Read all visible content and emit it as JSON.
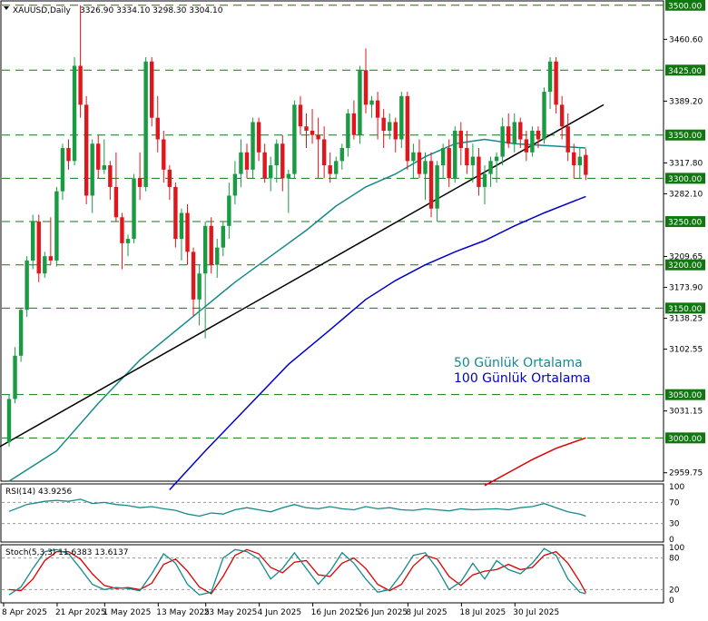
{
  "chart_data": {
    "type": "candlestick",
    "header": {
      "symbol": "XAUUSD,Daily",
      "ohlc": "3326.90 3334.10 3298.30 3304.10"
    },
    "colors": {
      "up": "#1a9a43",
      "down": "#e0161d",
      "ma50": "#158a8a",
      "ma100": "#0000cc",
      "ma200": "#dd0000",
      "trendline": "#000000",
      "level_line": "#117711",
      "level_tag_bg": "#117711",
      "rsi_line": "#158a8a",
      "stoch_main": "#158a8a",
      "stoch_signal": "#dd0000"
    },
    "price_axis": {
      "min": 2950,
      "max": 3505,
      "ticks": [
        "3460.60",
        "3389.20",
        "3317.80",
        "3282.10",
        "3209.65",
        "3173.90",
        "3138.25",
        "3102.55",
        "3031.15",
        "2959.75"
      ]
    },
    "levels": [
      {
        "value": 3500,
        "label": "3500.00"
      },
      {
        "value": 3425,
        "label": "3425.00"
      },
      {
        "value": 3350,
        "label": "3350.00"
      },
      {
        "value": 3300,
        "label": "3300.00"
      },
      {
        "value": 3250,
        "label": "3250.00"
      },
      {
        "value": 3200,
        "label": "3200.00"
      },
      {
        "value": 3150,
        "label": "3150.00"
      },
      {
        "value": 3050,
        "label": "3050.00"
      },
      {
        "value": 3000,
        "label": "3000.00"
      }
    ],
    "candles": [
      [
        2995,
        3050,
        2990,
        3045
      ],
      [
        3045,
        3105,
        3040,
        3095
      ],
      [
        3095,
        3150,
        3088,
        3148
      ],
      [
        3148,
        3210,
        3140,
        3205
      ],
      [
        3205,
        3258,
        3195,
        3250
      ],
      [
        3250,
        3258,
        3180,
        3190
      ],
      [
        3190,
        3215,
        3185,
        3210
      ],
      [
        3210,
        3255,
        3200,
        3205
      ],
      [
        3205,
        3290,
        3198,
        3285
      ],
      [
        3285,
        3340,
        3275,
        3335
      ],
      [
        3335,
        3345,
        3310,
        3320
      ],
      [
        3320,
        3440,
        3315,
        3430
      ],
      [
        3430,
        3500,
        3370,
        3385
      ],
      [
        3385,
        3395,
        3270,
        3280
      ],
      [
        3280,
        3345,
        3260,
        3340
      ],
      [
        3340,
        3350,
        3300,
        3310
      ],
      [
        3310,
        3345,
        3305,
        3315
      ],
      [
        3315,
        3320,
        3275,
        3290
      ],
      [
        3290,
        3330,
        3250,
        3255
      ],
      [
        3255,
        3260,
        3195,
        3225
      ],
      [
        3225,
        3235,
        3210,
        3230
      ],
      [
        3230,
        3305,
        3225,
        3300
      ],
      [
        3300,
        3330,
        3275,
        3290
      ],
      [
        3290,
        3440,
        3285,
        3435
      ],
      [
        3435,
        3440,
        3360,
        3370
      ],
      [
        3370,
        3395,
        3330,
        3345
      ],
      [
        3345,
        3355,
        3295,
        3310
      ],
      [
        3310,
        3315,
        3275,
        3290
      ],
      [
        3290,
        3295,
        3220,
        3230
      ],
      [
        3230,
        3265,
        3205,
        3260
      ],
      [
        3260,
        3270,
        3200,
        3215
      ],
      [
        3215,
        3220,
        3140,
        3160
      ],
      [
        3160,
        3200,
        3130,
        3190
      ],
      [
        3190,
        3250,
        3115,
        3245
      ],
      [
        3245,
        3255,
        3190,
        3200
      ],
      [
        3200,
        3230,
        3185,
        3220
      ],
      [
        3220,
        3250,
        3210,
        3245
      ],
      [
        3245,
        3295,
        3230,
        3280
      ],
      [
        3280,
        3320,
        3270,
        3305
      ],
      [
        3305,
        3345,
        3290,
        3330
      ],
      [
        3330,
        3340,
        3300,
        3310
      ],
      [
        3310,
        3370,
        3300,
        3365
      ],
      [
        3365,
        3370,
        3320,
        3330
      ],
      [
        3330,
        3340,
        3295,
        3300
      ],
      [
        3300,
        3325,
        3285,
        3315
      ],
      [
        3315,
        3345,
        3295,
        3340
      ],
      [
        3340,
        3350,
        3285,
        3300
      ],
      [
        3300,
        3310,
        3260,
        3305
      ],
      [
        3305,
        3390,
        3300,
        3385
      ],
      [
        3385,
        3395,
        3350,
        3360
      ],
      [
        3360,
        3375,
        3335,
        3355
      ],
      [
        3355,
        3380,
        3340,
        3350
      ],
      [
        3350,
        3370,
        3300,
        3345
      ],
      [
        3345,
        3360,
        3300,
        3315
      ],
      [
        3315,
        3330,
        3295,
        3305
      ],
      [
        3305,
        3325,
        3300,
        3320
      ],
      [
        3320,
        3340,
        3310,
        3335
      ],
      [
        3335,
        3380,
        3325,
        3375
      ],
      [
        3375,
        3390,
        3345,
        3350
      ],
      [
        3350,
        3430,
        3340,
        3425
      ],
      [
        3425,
        3450,
        3375,
        3385
      ],
      [
        3385,
        3395,
        3370,
        3390
      ],
      [
        3390,
        3400,
        3345,
        3370
      ],
      [
        3370,
        3380,
        3335,
        3355
      ],
      [
        3355,
        3375,
        3345,
        3365
      ],
      [
        3365,
        3370,
        3330,
        3345
      ],
      [
        3345,
        3400,
        3335,
        3395
      ],
      [
        3395,
        3400,
        3310,
        3320
      ],
      [
        3320,
        3340,
        3300,
        3330
      ],
      [
        3330,
        3345,
        3300,
        3305
      ],
      [
        3305,
        3330,
        3275,
        3320
      ],
      [
        3320,
        3330,
        3255,
        3265
      ],
      [
        3265,
        3320,
        3250,
        3315
      ],
      [
        3315,
        3340,
        3300,
        3335
      ],
      [
        3335,
        3345,
        3290,
        3300
      ],
      [
        3300,
        3360,
        3295,
        3355
      ],
      [
        3355,
        3365,
        3315,
        3335
      ],
      [
        3335,
        3355,
        3305,
        3315
      ],
      [
        3315,
        3340,
        3295,
        3325
      ],
      [
        3325,
        3335,
        3280,
        3290
      ],
      [
        3290,
        3315,
        3270,
        3305
      ],
      [
        3305,
        3325,
        3290,
        3320
      ],
      [
        3320,
        3330,
        3295,
        3325
      ],
      [
        3325,
        3370,
        3315,
        3360
      ],
      [
        3360,
        3375,
        3335,
        3340
      ],
      [
        3340,
        3375,
        3330,
        3365
      ],
      [
        3365,
        3370,
        3335,
        3345
      ],
      [
        3345,
        3355,
        3320,
        3330
      ],
      [
        3330,
        3360,
        3325,
        3355
      ],
      [
        3355,
        3360,
        3335,
        3345
      ],
      [
        3345,
        3405,
        3340,
        3400
      ],
      [
        3400,
        3440,
        3380,
        3435
      ],
      [
        3435,
        3440,
        3375,
        3385
      ],
      [
        3385,
        3395,
        3345,
        3360
      ],
      [
        3360,
        3375,
        3320,
        3330
      ],
      [
        3330,
        3340,
        3300,
        3315
      ],
      [
        3315,
        3335,
        3300,
        3325
      ],
      [
        3327,
        3334,
        3298,
        3304
      ]
    ],
    "ma50": [
      [
        0,
        2950
      ],
      [
        8,
        2985
      ],
      [
        15,
        3040
      ],
      [
        22,
        3090
      ],
      [
        30,
        3135
      ],
      [
        38,
        3180
      ],
      [
        44,
        3210
      ],
      [
        50,
        3240
      ],
      [
        55,
        3268
      ],
      [
        60,
        3290
      ],
      [
        65,
        3305
      ],
      [
        70,
        3325
      ],
      [
        75,
        3340
      ],
      [
        80,
        3345
      ],
      [
        85,
        3340
      ],
      [
        90,
        3338
      ],
      [
        97,
        3335
      ]
    ],
    "ma100": [
      [
        27,
        2940
      ],
      [
        33,
        2985
      ],
      [
        40,
        3035
      ],
      [
        47,
        3085
      ],
      [
        54,
        3125
      ],
      [
        60,
        3160
      ],
      [
        65,
        3182
      ],
      [
        70,
        3200
      ],
      [
        75,
        3215
      ],
      [
        80,
        3228
      ],
      [
        85,
        3245
      ],
      [
        90,
        3260
      ],
      [
        97,
        3279
      ]
    ],
    "ma200": [
      [
        80,
        2945
      ],
      [
        84,
        2960
      ],
      [
        88,
        2975
      ],
      [
        92,
        2988
      ],
      [
        97,
        3000
      ]
    ],
    "trendline": [
      [
        0,
        2990
      ],
      [
        100,
        3385
      ]
    ],
    "legend": [
      {
        "label": "50 Günlük Ortalama",
        "color_key": "ma50"
      },
      {
        "label": "100 Günlük Ortalama",
        "color_key": "ma100"
      }
    ],
    "rsi": {
      "header": "RSI(14) 43.9256",
      "levels": [
        70,
        30
      ],
      "axis_labels": [
        "100",
        "70",
        "30",
        "0"
      ],
      "values": [
        [
          0,
          53
        ],
        [
          3,
          66
        ],
        [
          6,
          72
        ],
        [
          8,
          74
        ],
        [
          10,
          72
        ],
        [
          12,
          76
        ],
        [
          14,
          68
        ],
        [
          16,
          70
        ],
        [
          18,
          66
        ],
        [
          20,
          64
        ],
        [
          22,
          60
        ],
        [
          24,
          62
        ],
        [
          26,
          58
        ],
        [
          28,
          55
        ],
        [
          30,
          48
        ],
        [
          32,
          44
        ],
        [
          34,
          50
        ],
        [
          36,
          48
        ],
        [
          38,
          56
        ],
        [
          40,
          60
        ],
        [
          42,
          56
        ],
        [
          44,
          52
        ],
        [
          46,
          60
        ],
        [
          48,
          66
        ],
        [
          50,
          60
        ],
        [
          52,
          58
        ],
        [
          54,
          62
        ],
        [
          56,
          58
        ],
        [
          58,
          56
        ],
        [
          60,
          62
        ],
        [
          62,
          58
        ],
        [
          64,
          60
        ],
        [
          66,
          56
        ],
        [
          68,
          55
        ],
        [
          70,
          58
        ],
        [
          72,
          56
        ],
        [
          74,
          54
        ],
        [
          76,
          58
        ],
        [
          78,
          56
        ],
        [
          80,
          57
        ],
        [
          82,
          58
        ],
        [
          84,
          56
        ],
        [
          86,
          60
        ],
        [
          88,
          62
        ],
        [
          90,
          68
        ],
        [
          92,
          60
        ],
        [
          94,
          52
        ],
        [
          96,
          48
        ],
        [
          97,
          44
        ]
      ]
    },
    "stoch": {
      "header": "Stoch(5,3,3) 11.6383 13.6137",
      "levels": [
        80,
        20
      ],
      "axis_labels": [
        "100",
        "80",
        "20",
        "0"
      ],
      "main": [
        [
          0,
          10
        ],
        [
          2,
          25
        ],
        [
          4,
          60
        ],
        [
          6,
          92
        ],
        [
          8,
          96
        ],
        [
          10,
          88
        ],
        [
          12,
          60
        ],
        [
          14,
          30
        ],
        [
          16,
          20
        ],
        [
          18,
          24
        ],
        [
          20,
          22
        ],
        [
          22,
          18
        ],
        [
          24,
          50
        ],
        [
          26,
          88
        ],
        [
          28,
          70
        ],
        [
          30,
          30
        ],
        [
          32,
          10
        ],
        [
          34,
          15
        ],
        [
          36,
          80
        ],
        [
          38,
          96
        ],
        [
          40,
          92
        ],
        [
          42,
          78
        ],
        [
          44,
          40
        ],
        [
          46,
          60
        ],
        [
          48,
          90
        ],
        [
          50,
          60
        ],
        [
          52,
          30
        ],
        [
          54,
          55
        ],
        [
          56,
          90
        ],
        [
          58,
          70
        ],
        [
          60,
          40
        ],
        [
          62,
          15
        ],
        [
          64,
          20
        ],
        [
          66,
          50
        ],
        [
          68,
          85
        ],
        [
          70,
          90
        ],
        [
          72,
          60
        ],
        [
          74,
          20
        ],
        [
          76,
          35
        ],
        [
          78,
          70
        ],
        [
          80,
          40
        ],
        [
          82,
          75
        ],
        [
          84,
          58
        ],
        [
          86,
          50
        ],
        [
          88,
          70
        ],
        [
          90,
          98
        ],
        [
          92,
          85
        ],
        [
          94,
          40
        ],
        [
          96,
          15
        ],
        [
          97,
          12
        ]
      ],
      "signal": [
        [
          0,
          20
        ],
        [
          2,
          18
        ],
        [
          4,
          40
        ],
        [
          6,
          75
        ],
        [
          8,
          92
        ],
        [
          10,
          92
        ],
        [
          12,
          78
        ],
        [
          14,
          50
        ],
        [
          16,
          28
        ],
        [
          18,
          22
        ],
        [
          20,
          24
        ],
        [
          22,
          20
        ],
        [
          24,
          32
        ],
        [
          26,
          68
        ],
        [
          28,
          78
        ],
        [
          30,
          55
        ],
        [
          32,
          25
        ],
        [
          34,
          12
        ],
        [
          36,
          45
        ],
        [
          38,
          85
        ],
        [
          40,
          96
        ],
        [
          42,
          88
        ],
        [
          44,
          62
        ],
        [
          46,
          52
        ],
        [
          48,
          72
        ],
        [
          50,
          75
        ],
        [
          52,
          48
        ],
        [
          54,
          45
        ],
        [
          56,
          70
        ],
        [
          58,
          80
        ],
        [
          60,
          60
        ],
        [
          62,
          30
        ],
        [
          64,
          18
        ],
        [
          66,
          30
        ],
        [
          68,
          65
        ],
        [
          70,
          85
        ],
        [
          72,
          78
        ],
        [
          74,
          45
        ],
        [
          76,
          28
        ],
        [
          78,
          48
        ],
        [
          80,
          55
        ],
        [
          82,
          58
        ],
        [
          84,
          68
        ],
        [
          86,
          58
        ],
        [
          88,
          62
        ],
        [
          90,
          85
        ],
        [
          92,
          92
        ],
        [
          94,
          70
        ],
        [
          96,
          35
        ],
        [
          97,
          14
        ]
      ]
    },
    "date_labels": [
      {
        "i": 0,
        "label": "8 Apr 2025"
      },
      {
        "i": 9,
        "label": "21 Apr 2025"
      },
      {
        "i": 17,
        "label": "1 May 2025"
      },
      {
        "i": 26,
        "label": "13 May 2025"
      },
      {
        "i": 34,
        "label": "23 May 2025"
      },
      {
        "i": 43,
        "label": "4 Jun 2025"
      },
      {
        "i": 52,
        "label": "16 Jun 2025"
      },
      {
        "i": 60,
        "label": "26 Jun 2025"
      },
      {
        "i": 68,
        "label": "8 Jul 2025"
      },
      {
        "i": 77,
        "label": "18 Jul 2025"
      },
      {
        "i": 86,
        "label": "30 Jul 2025"
      }
    ]
  }
}
